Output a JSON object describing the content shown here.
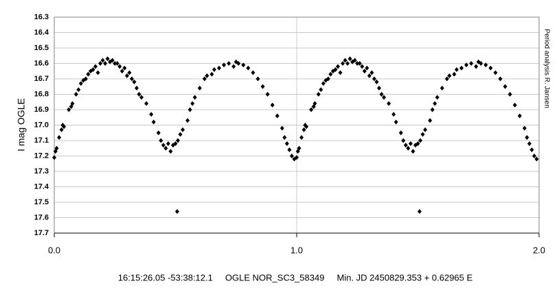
{
  "chart_data": {
    "type": "scatter",
    "y_label": "I mag OGLE",
    "side_note": "Period analysis R. Jansen",
    "caption": "16:15:26.05 -53:38:12.1     OGLE NOR_SC3_58349     Min. JD 2450829.353 + 0.62965 E",
    "color": "#000000",
    "grid": true,
    "xlim": [
      0,
      2
    ],
    "xticks": [
      {
        "value": 0,
        "label": "0.0"
      },
      {
        "value": 1,
        "label": "1.0"
      },
      {
        "value": 2,
        "label": "2.0"
      }
    ],
    "ylim": [
      17.7,
      16.3
    ],
    "yticks": [
      16.3,
      16.4,
      16.5,
      16.6,
      16.7,
      16.8,
      16.9,
      {
        "value": 17,
        "label": "17.0"
      },
      17.1,
      17.2,
      17.3,
      17.4,
      17.5,
      17.6,
      17.7
    ],
    "x": [
      0.0,
      0.005,
      0.01,
      0.02,
      0.03,
      0.035,
      0.04,
      0.06,
      0.07,
      0.075,
      0.09,
      0.1,
      0.11,
      0.12,
      0.13,
      0.14,
      0.15,
      0.16,
      0.17,
      0.18,
      0.19,
      0.2,
      0.21,
      0.22,
      0.23,
      0.24,
      0.25,
      0.26,
      0.27,
      0.28,
      0.29,
      0.3,
      0.31,
      0.32,
      0.33,
      0.34,
      0.35,
      0.36,
      0.38,
      0.4,
      0.41,
      0.43,
      0.44,
      0.45,
      0.46,
      0.47,
      0.48,
      0.49,
      0.5,
      0.507,
      0.51,
      0.52,
      0.53,
      0.55,
      0.56,
      0.57,
      0.58,
      0.6,
      0.62,
      0.63,
      0.65,
      0.66,
      0.68,
      0.7,
      0.72,
      0.74,
      0.75,
      0.76,
      0.78,
      0.8,
      0.82,
      0.84,
      0.86,
      0.88,
      0.9,
      0.92,
      0.94,
      0.95,
      0.96,
      0.97,
      0.98,
      0.99,
      1.0,
      1.005,
      1.01,
      1.02,
      1.03,
      1.035,
      1.04,
      1.06,
      1.07,
      1.075,
      1.09,
      1.1,
      1.11,
      1.12,
      1.13,
      1.14,
      1.15,
      1.16,
      1.17,
      1.18,
      1.19,
      1.2,
      1.21,
      1.22,
      1.23,
      1.24,
      1.25,
      1.26,
      1.27,
      1.28,
      1.29,
      1.3,
      1.31,
      1.32,
      1.33,
      1.34,
      1.35,
      1.36,
      1.38,
      1.4,
      1.41,
      1.43,
      1.44,
      1.45,
      1.46,
      1.47,
      1.48,
      1.49,
      1.5,
      1.507,
      1.51,
      1.52,
      1.53,
      1.55,
      1.56,
      1.57,
      1.58,
      1.6,
      1.62,
      1.63,
      1.65,
      1.66,
      1.68,
      1.7,
      1.72,
      1.74,
      1.75,
      1.76,
      1.78,
      1.8,
      1.82,
      1.84,
      1.86,
      1.88,
      1.9,
      1.92,
      1.94,
      1.95,
      1.96,
      1.97,
      1.98,
      1.99
    ],
    "values": [
      17.21,
      17.17,
      17.15,
      17.08,
      17.03,
      17.0,
      17.01,
      16.9,
      16.88,
      16.86,
      16.8,
      16.77,
      16.73,
      16.71,
      16.7,
      16.67,
      16.65,
      16.64,
      16.62,
      16.66,
      16.6,
      16.58,
      16.6,
      16.57,
      16.59,
      16.58,
      16.6,
      16.6,
      16.62,
      16.65,
      16.63,
      16.68,
      16.66,
      16.7,
      16.72,
      16.76,
      16.8,
      16.82,
      16.86,
      16.93,
      16.98,
      17.05,
      17.1,
      17.13,
      17.15,
      17.12,
      17.17,
      17.13,
      17.12,
      17.56,
      17.1,
      17.06,
      17.03,
      16.97,
      16.9,
      16.86,
      16.82,
      16.76,
      16.7,
      16.68,
      16.67,
      16.64,
      16.63,
      16.61,
      16.6,
      16.62,
      16.59,
      16.6,
      16.61,
      16.63,
      16.66,
      16.7,
      16.75,
      16.8,
      16.87,
      16.94,
      17.02,
      17.08,
      17.12,
      17.16,
      17.2,
      17.22,
      17.21,
      17.17,
      17.15,
      17.08,
      17.03,
      17.0,
      17.01,
      16.9,
      16.88,
      16.86,
      16.8,
      16.77,
      16.73,
      16.71,
      16.7,
      16.67,
      16.65,
      16.64,
      16.62,
      16.66,
      16.6,
      16.58,
      16.6,
      16.57,
      16.59,
      16.58,
      16.6,
      16.6,
      16.62,
      16.65,
      16.63,
      16.68,
      16.66,
      16.7,
      16.72,
      16.76,
      16.8,
      16.82,
      16.86,
      16.93,
      16.98,
      17.05,
      17.1,
      17.13,
      17.15,
      17.12,
      17.17,
      17.13,
      17.12,
      17.56,
      17.1,
      17.06,
      17.03,
      16.97,
      16.9,
      16.86,
      16.82,
      16.76,
      16.7,
      16.68,
      16.67,
      16.64,
      16.63,
      16.61,
      16.6,
      16.62,
      16.59,
      16.6,
      16.61,
      16.63,
      16.66,
      16.7,
      16.75,
      16.8,
      16.87,
      16.94,
      17.02,
      17.08,
      17.12,
      17.16,
      17.2,
      17.22
    ]
  }
}
